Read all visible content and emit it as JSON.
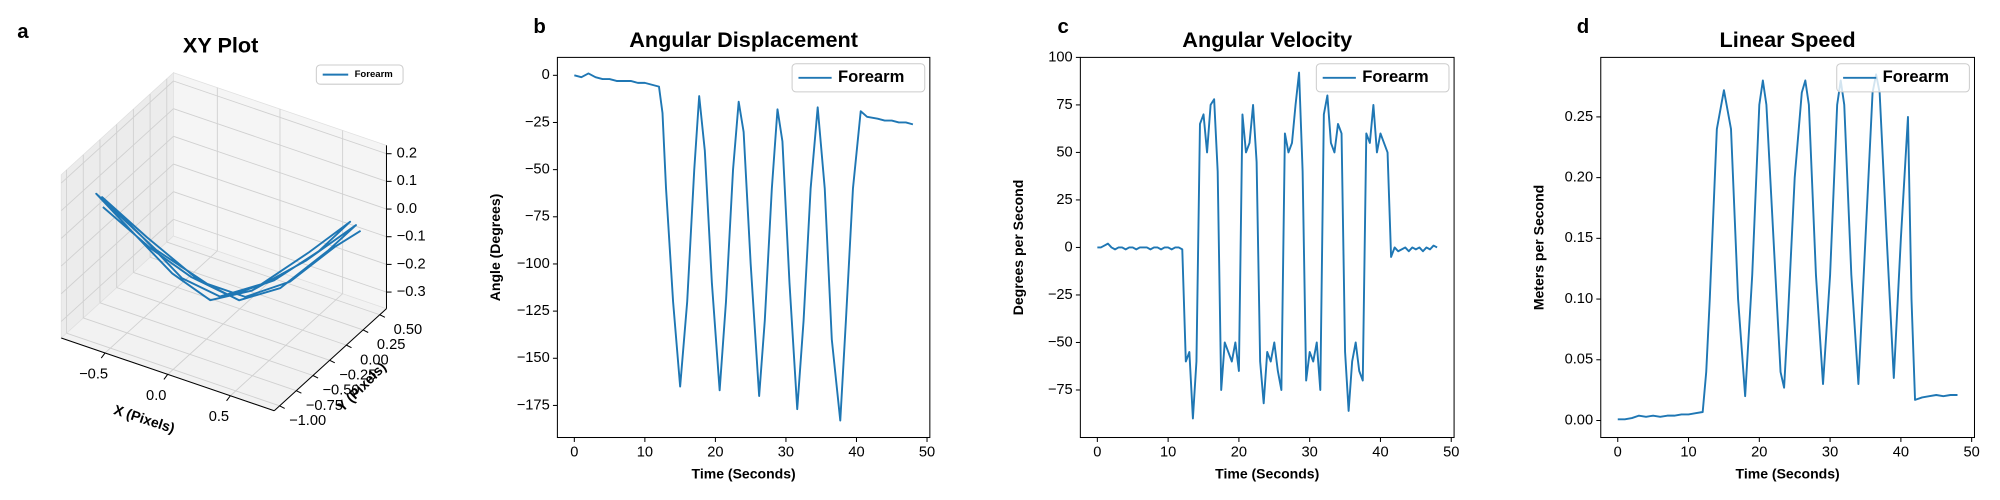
{
  "chart_data": [
    {
      "type": "line3d",
      "panel_label": "a",
      "title": "XY Plot",
      "xlabel": "X (Pixels)",
      "ylabel": "Y (Pixels)",
      "xlim": [
        -0.85,
        0.85
      ],
      "ylim": [
        -1.08,
        0.6
      ],
      "zlim": [
        -0.36,
        0.23
      ],
      "xticks": [
        {
          "value": -0.5,
          "label": "−0.5"
        },
        {
          "value": 0,
          "label": "0.0"
        },
        {
          "value": 0.5,
          "label": "0.5"
        }
      ],
      "yticks": [
        {
          "value": -1,
          "label": "−1.00"
        },
        {
          "value": -0.75,
          "label": "−0.75"
        },
        {
          "value": -0.5,
          "label": "−0.50"
        },
        {
          "value": -0.25,
          "label": "−0.25"
        },
        {
          "value": 0,
          "label": "0.00"
        },
        {
          "value": 0.25,
          "label": "0.25"
        },
        {
          "value": 0.5,
          "label": "0.50"
        }
      ],
      "zticks": [
        {
          "value": -0.3,
          "label": "−0.3"
        },
        {
          "value": -0.2,
          "label": "−0.2"
        },
        {
          "value": -0.1,
          "label": "−0.1"
        },
        {
          "value": 0,
          "label": "0.0"
        },
        {
          "value": 0.1,
          "label": "0.1"
        },
        {
          "value": 0.2,
          "label": "0.2"
        }
      ],
      "grid": true,
      "legend": "upper right",
      "series": [
        {
          "name": "Forearm",
          "color": "#1f77b4",
          "x": [
            -0.72,
            -0.45,
            -0.2,
            0.05,
            0.3,
            0.55,
            0.72,
            0.5,
            0.25,
            0,
            -0.25,
            -0.5,
            -0.7,
            -0.45,
            -0.15,
            0.1,
            0.35,
            0.6,
            0.74,
            0.5,
            0.2,
            -0.05,
            -0.3,
            -0.55,
            -0.72,
            -0.4,
            -0.1,
            0.15,
            0.4,
            0.65,
            0.75
          ],
          "y": [
            -0.7,
            -0.5,
            -0.35,
            -0.25,
            -0.05,
            0.15,
            0.3,
            0.1,
            -0.15,
            -0.3,
            -0.4,
            -0.55,
            -0.75,
            -0.55,
            -0.35,
            -0.2,
            -0.05,
            0.2,
            0.35,
            0.05,
            -0.2,
            -0.35,
            -0.45,
            -0.6,
            -0.8,
            -0.5,
            -0.3,
            -0.2,
            0,
            0.2,
            0.4
          ],
          "z": [
            0.05,
            -0.1,
            -0.2,
            -0.25,
            -0.2,
            -0.1,
            0,
            -0.1,
            -0.2,
            -0.25,
            -0.2,
            -0.05,
            0.1,
            -0.05,
            -0.2,
            -0.27,
            -0.22,
            -0.1,
            -0.02,
            -0.12,
            -0.22,
            -0.26,
            -0.18,
            -0.03,
            0.12,
            -0.1,
            -0.22,
            -0.25,
            -0.2,
            -0.08,
            -0.05
          ]
        }
      ]
    },
    {
      "type": "line",
      "panel_label": "b",
      "title": "Angular Displacement",
      "xlabel": "Time (Seconds)",
      "ylabel": "Angle (Degrees)",
      "xlim": [
        -2.4,
        50.4
      ],
      "ylim": [
        -192,
        9.5
      ],
      "xticks": [
        0,
        10,
        20,
        30,
        40,
        50
      ],
      "yticks": [
        0,
        {
          "value": -25,
          "label": "−25"
        },
        {
          "value": -50,
          "label": "−50"
        },
        {
          "value": -75,
          "label": "−75"
        },
        {
          "value": -100,
          "label": "−100"
        },
        {
          "value": -125,
          "label": "−125"
        },
        {
          "value": -150,
          "label": "−150"
        },
        {
          "value": -175,
          "label": "−175"
        }
      ],
      "legend": "upper right",
      "x": [
        0,
        1,
        2,
        3,
        4,
        5,
        6,
        7,
        8,
        9,
        10,
        11,
        12,
        12.5,
        13,
        14,
        15,
        16,
        17,
        17.7,
        18.5,
        19.5,
        20.6,
        21.5,
        22.5,
        23.3,
        24,
        25,
        26.2,
        27,
        28,
        28.8,
        29.5,
        30.5,
        31.6,
        32.5,
        33.5,
        34.5,
        35.5,
        36.5,
        37.7,
        38.5,
        39.5,
        40.6,
        41.5,
        43,
        44,
        45,
        46,
        47,
        48
      ],
      "series": [
        {
          "name": "Forearm",
          "color": "#1f77b4",
          "values": [
            0,
            -1,
            1,
            -1,
            -2,
            -2,
            -3,
            -3,
            -3,
            -4,
            -4,
            -5,
            -6,
            -20,
            -60,
            -120,
            -165,
            -120,
            -50,
            -11,
            -40,
            -110,
            -167,
            -120,
            -50,
            -14,
            -30,
            -100,
            -170,
            -130,
            -60,
            -18,
            -35,
            -110,
            -177,
            -130,
            -60,
            -17,
            -60,
            -140,
            -183,
            -130,
            -60,
            -19,
            -22,
            -23,
            -24,
            -24,
            -25,
            -25,
            -26
          ]
        }
      ]
    },
    {
      "type": "line",
      "panel_label": "c",
      "title": "Angular Velocity",
      "xlabel": "Time (Seconds)",
      "ylabel": "Degrees per Second",
      "xlim": [
        -2.4,
        50.4
      ],
      "ylim": [
        -100,
        100
      ],
      "xticks": [
        0,
        10,
        20,
        30,
        40,
        50
      ],
      "yticks": [
        {
          "value": -75,
          "label": "−75"
        },
        {
          "value": -50,
          "label": "−50"
        },
        {
          "value": -25,
          "label": "−25"
        },
        0,
        25,
        50,
        75,
        100
      ],
      "legend": "upper right",
      "x": [
        0,
        0.5,
        1,
        1.5,
        2,
        2.5,
        3,
        3.5,
        4,
        4.5,
        5,
        5.5,
        6,
        6.5,
        7,
        7.5,
        8,
        8.5,
        9,
        9.5,
        10,
        10.5,
        11,
        11.5,
        12,
        12.5,
        13,
        13.5,
        14,
        14.5,
        15,
        15.5,
        16,
        16.5,
        17,
        17.5,
        18,
        18.5,
        19,
        19.5,
        20,
        20.5,
        21,
        21.5,
        22,
        22.5,
        23,
        23.5,
        24,
        24.5,
        25,
        25.5,
        26,
        26.5,
        27,
        27.5,
        28,
        28.5,
        29,
        29.5,
        30,
        30.5,
        31,
        31.5,
        32,
        32.5,
        33,
        33.5,
        34,
        34.5,
        35,
        35.5,
        36,
        36.5,
        37,
        37.5,
        38,
        38.5,
        39,
        39.5,
        40,
        40.5,
        41,
        41.5,
        42,
        42.5,
        43,
        43.5,
        44,
        44.5,
        45,
        45.5,
        46,
        46.5,
        47,
        47.5,
        48
      ],
      "series": [
        {
          "name": "Forearm",
          "color": "#1f77b4",
          "values": [
            0,
            0,
            1,
            2,
            0,
            -1,
            0,
            0,
            -1,
            0,
            0,
            -1,
            0,
            0,
            0,
            -1,
            0,
            0,
            -1,
            0,
            0,
            -1,
            0,
            0,
            -1,
            -60,
            -55,
            -90,
            -60,
            65,
            70,
            50,
            75,
            78,
            40,
            -75,
            -50,
            -55,
            -60,
            -50,
            -65,
            70,
            50,
            55,
            75,
            45,
            -60,
            -82,
            -55,
            -60,
            -50,
            -65,
            -75,
            60,
            50,
            55,
            75,
            92,
            40,
            -70,
            -55,
            -60,
            -50,
            -75,
            70,
            80,
            55,
            50,
            65,
            60,
            -55,
            -86,
            -60,
            -50,
            -65,
            -70,
            60,
            55,
            75,
            50,
            60,
            55,
            50,
            -5,
            0,
            -2,
            -1,
            0,
            -2,
            0,
            -1,
            0,
            -2,
            0,
            -1,
            1,
            0
          ]
        }
      ]
    },
    {
      "type": "line",
      "panel_label": "d",
      "title": "Linear Speed",
      "xlabel": "Time (Seconds)",
      "ylabel": "Meters per Second",
      "xlim": [
        -2.4,
        50.4
      ],
      "ylim": [
        -0.014,
        0.299
      ],
      "xticks": [
        0,
        10,
        20,
        30,
        40,
        50
      ],
      "yticks": [
        {
          "value": 0,
          "label": "0.00"
        },
        {
          "value": 0.05,
          "label": "0.05"
        },
        {
          "value": 0.1,
          "label": "0.10"
        },
        {
          "value": 0.15,
          "label": "0.15"
        },
        {
          "value": 0.2,
          "label": "0.20"
        },
        {
          "value": 0.25,
          "label": "0.25"
        }
      ],
      "legend": "upper right",
      "x": [
        0,
        1,
        2,
        3,
        4,
        5,
        6,
        7,
        8,
        9,
        10,
        11,
        12,
        12.5,
        13,
        13.5,
        14,
        15,
        16,
        17,
        18,
        19,
        20,
        20.5,
        21,
        22,
        23,
        23.5,
        24,
        25,
        26,
        26.5,
        27,
        28,
        29,
        30,
        31,
        31.5,
        32,
        33,
        34,
        35,
        36,
        36.5,
        37,
        38,
        39,
        40,
        41,
        41.5,
        42,
        43,
        44,
        45,
        46,
        47,
        48
      ],
      "series": [
        {
          "name": "Forearm",
          "color": "#1f77b4",
          "values": [
            0.001,
            0.001,
            0.002,
            0.004,
            0.003,
            0.004,
            0.003,
            0.004,
            0.004,
            0.005,
            0.005,
            0.006,
            0.007,
            0.04,
            0.1,
            0.17,
            0.24,
            0.272,
            0.24,
            0.1,
            0.02,
            0.12,
            0.26,
            0.28,
            0.26,
            0.15,
            0.04,
            0.027,
            0.08,
            0.2,
            0.27,
            0.28,
            0.26,
            0.12,
            0.03,
            0.12,
            0.26,
            0.28,
            0.26,
            0.12,
            0.03,
            0.15,
            0.27,
            0.285,
            0.27,
            0.15,
            0.035,
            0.15,
            0.25,
            0.1,
            0.017,
            0.019,
            0.02,
            0.021,
            0.02,
            0.021,
            0.021
          ]
        }
      ]
    }
  ]
}
